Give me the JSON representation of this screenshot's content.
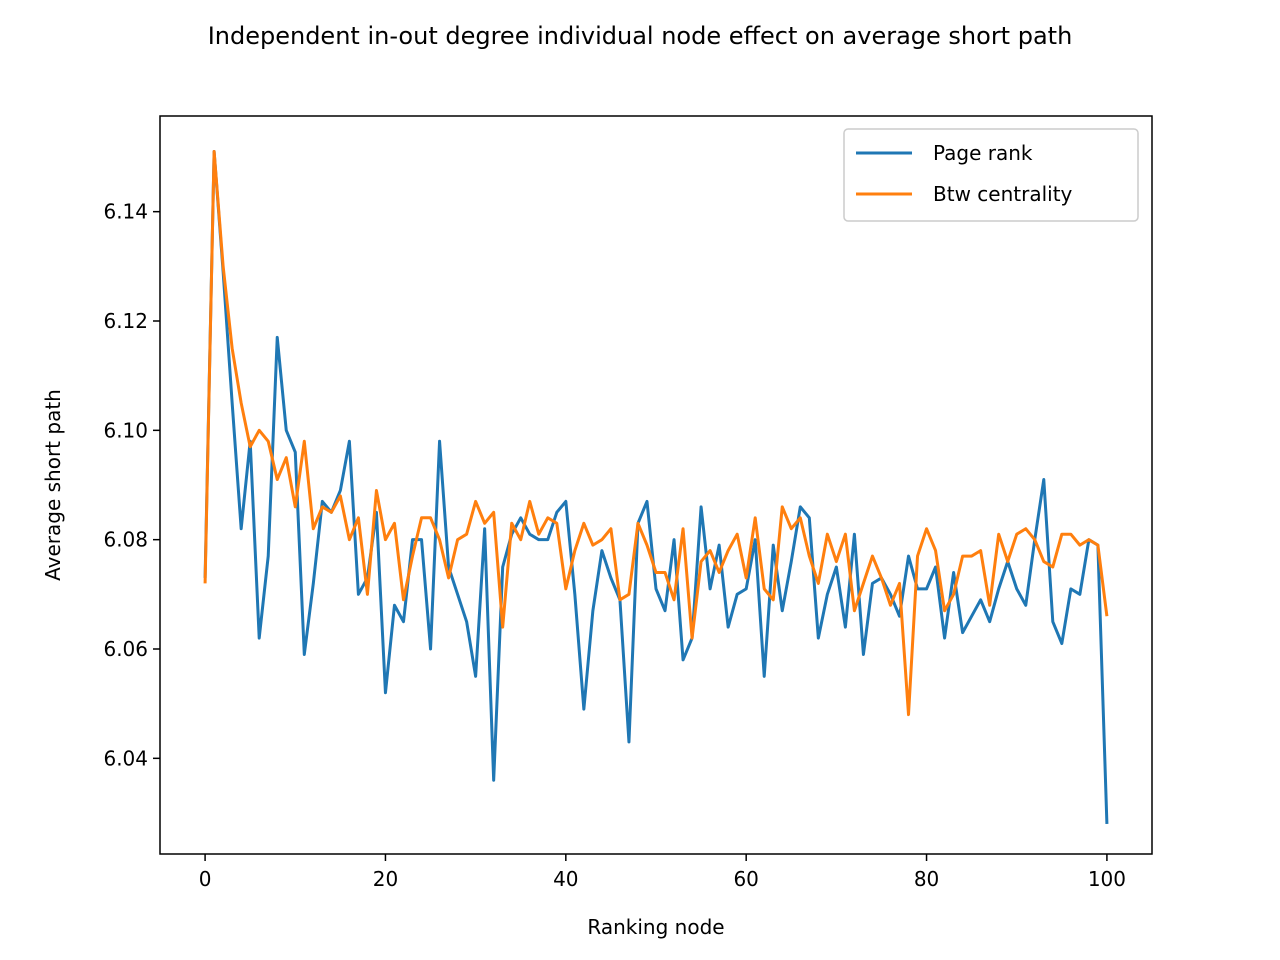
{
  "chart_data": {
    "type": "line",
    "title": "Independent in-out degree individual node effect on average short path",
    "xlabel": "Ranking node",
    "ylabel": "Average short path",
    "xlim": [
      -5,
      105
    ],
    "ylim": [
      6.0225,
      6.1575
    ],
    "xticks": [
      0,
      20,
      40,
      60,
      80,
      100
    ],
    "yticks": [
      6.04,
      6.06,
      6.08,
      6.1,
      6.12,
      6.14
    ],
    "ytick_labels": [
      "6.04",
      "6.06",
      "6.08",
      "6.10",
      "6.12",
      "6.14"
    ],
    "grid": false,
    "legend_position": "upper right",
    "series": [
      {
        "name": "Page rank",
        "color": "#1f77b4",
        "x": [
          0,
          1,
          2,
          3,
          4,
          5,
          6,
          7,
          8,
          9,
          10,
          11,
          12,
          13,
          14,
          15,
          16,
          17,
          18,
          19,
          20,
          21,
          22,
          23,
          24,
          25,
          26,
          27,
          28,
          29,
          30,
          31,
          32,
          33,
          34,
          35,
          36,
          37,
          38,
          39,
          40,
          41,
          42,
          43,
          44,
          45,
          46,
          47,
          48,
          49,
          50,
          51,
          52,
          53,
          54,
          55,
          56,
          57,
          58,
          59,
          60,
          61,
          62,
          63,
          64,
          65,
          66,
          67,
          68,
          69,
          70,
          71,
          72,
          73,
          74,
          75,
          76,
          77,
          78,
          79,
          80,
          81,
          82,
          83,
          84,
          85,
          86,
          87,
          88,
          89,
          90,
          91,
          92,
          93,
          94,
          95,
          96,
          97,
          98,
          99,
          100
        ],
        "values": [
          6.073,
          6.151,
          6.129,
          6.105,
          6.082,
          6.098,
          6.062,
          6.077,
          6.117,
          6.1,
          6.096,
          6.059,
          6.072,
          6.087,
          6.085,
          6.089,
          6.098,
          6.07,
          6.073,
          6.085,
          6.052,
          6.068,
          6.065,
          6.08,
          6.08,
          6.06,
          6.098,
          6.075,
          6.07,
          6.065,
          6.055,
          6.082,
          6.036,
          6.075,
          6.081,
          6.084,
          6.081,
          6.08,
          6.08,
          6.085,
          6.087,
          6.07,
          6.049,
          6.067,
          6.078,
          6.073,
          6.069,
          6.043,
          6.083,
          6.087,
          6.071,
          6.067,
          6.08,
          6.058,
          6.062,
          6.086,
          6.071,
          6.079,
          6.064,
          6.07,
          6.071,
          6.08,
          6.055,
          6.079,
          6.067,
          6.076,
          6.086,
          6.084,
          6.062,
          6.07,
          6.075,
          6.064,
          6.081,
          6.059,
          6.072,
          6.073,
          6.07,
          6.066,
          6.077,
          6.071,
          6.071,
          6.075,
          6.062,
          6.074,
          6.063,
          6.066,
          6.069,
          6.065,
          6.071,
          6.076,
          6.071,
          6.068,
          6.08,
          6.091,
          6.065,
          6.061,
          6.071,
          6.07,
          6.08,
          6.079,
          6.028
        ]
      },
      {
        "name": "Btw centrality",
        "color": "#ff7f0e",
        "x": [
          0,
          1,
          2,
          3,
          4,
          5,
          6,
          7,
          8,
          9,
          10,
          11,
          12,
          13,
          14,
          15,
          16,
          17,
          18,
          19,
          20,
          21,
          22,
          23,
          24,
          25,
          26,
          27,
          28,
          29,
          30,
          31,
          32,
          33,
          34,
          35,
          36,
          37,
          38,
          39,
          40,
          41,
          42,
          43,
          44,
          45,
          46,
          47,
          48,
          49,
          50,
          51,
          52,
          53,
          54,
          55,
          56,
          57,
          58,
          59,
          60,
          61,
          62,
          63,
          64,
          65,
          66,
          67,
          68,
          69,
          70,
          71,
          72,
          73,
          74,
          75,
          76,
          77,
          78,
          79,
          80,
          81,
          82,
          83,
          84,
          85,
          86,
          87,
          88,
          89,
          90,
          91,
          92,
          93,
          94,
          95,
          96,
          97,
          98,
          99,
          100
        ],
        "values": [
          6.072,
          6.151,
          6.13,
          6.115,
          6.105,
          6.097,
          6.1,
          6.098,
          6.091,
          6.095,
          6.086,
          6.098,
          6.082,
          6.086,
          6.085,
          6.088,
          6.08,
          6.084,
          6.07,
          6.089,
          6.08,
          6.083,
          6.069,
          6.077,
          6.084,
          6.084,
          6.08,
          6.073,
          6.08,
          6.081,
          6.087,
          6.083,
          6.085,
          6.064,
          6.083,
          6.08,
          6.087,
          6.081,
          6.084,
          6.083,
          6.071,
          6.078,
          6.083,
          6.079,
          6.08,
          6.082,
          6.069,
          6.07,
          6.083,
          6.079,
          6.074,
          6.074,
          6.069,
          6.082,
          6.062,
          6.076,
          6.078,
          6.074,
          6.078,
          6.081,
          6.073,
          6.084,
          6.071,
          6.069,
          6.086,
          6.082,
          6.084,
          6.077,
          6.072,
          6.081,
          6.076,
          6.081,
          6.067,
          6.072,
          6.077,
          6.073,
          6.068,
          6.072,
          6.048,
          6.077,
          6.082,
          6.078,
          6.067,
          6.07,
          6.077,
          6.077,
          6.078,
          6.068,
          6.081,
          6.076,
          6.081,
          6.082,
          6.08,
          6.076,
          6.075,
          6.081,
          6.081,
          6.079,
          6.08,
          6.079,
          6.066
        ]
      }
    ]
  }
}
